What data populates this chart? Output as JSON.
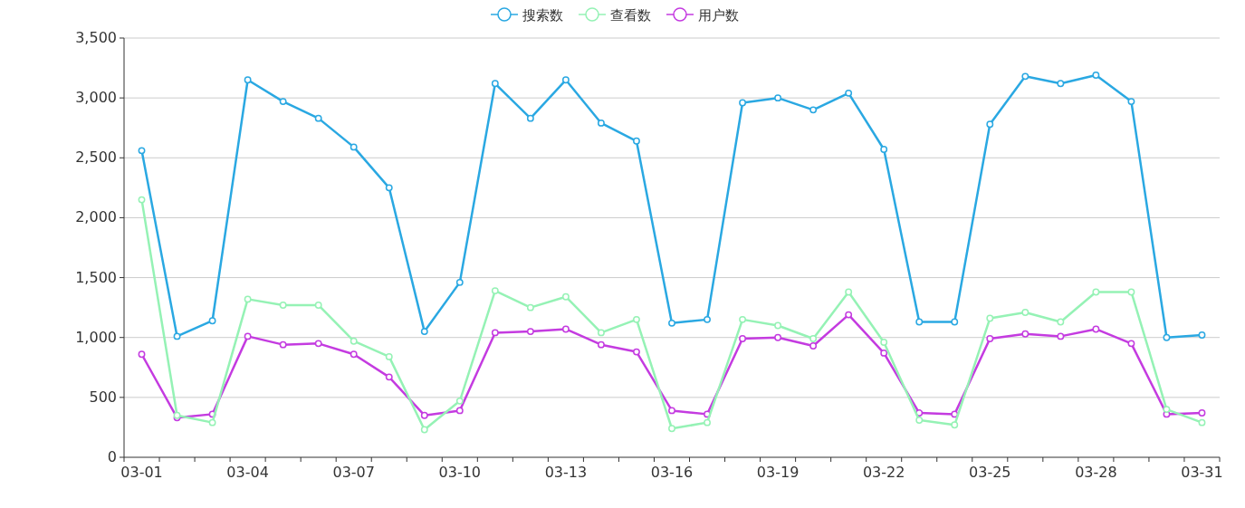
{
  "chart_data": {
    "type": "line",
    "categories": [
      "03-01",
      null,
      null,
      "03-04",
      null,
      null,
      "03-07",
      null,
      null,
      "03-10",
      null,
      null,
      "03-13",
      null,
      null,
      "03-16",
      null,
      null,
      "03-19",
      null,
      null,
      "03-22",
      null,
      null,
      "03-25",
      null,
      null,
      "03-28",
      null,
      null,
      "03-31"
    ],
    "series": [
      {
        "name": "搜索数",
        "color": "#2aa8e2",
        "values": [
          2560,
          1010,
          1140,
          3150,
          2970,
          2830,
          2590,
          2250,
          1050,
          1460,
          3120,
          2830,
          3150,
          2790,
          2640,
          1120,
          1150,
          2960,
          3000,
          2900,
          3040,
          2570,
          1130,
          1130,
          2780,
          3180,
          3120,
          3190,
          2970,
          1000,
          1020
        ]
      },
      {
        "name": "查看数",
        "color": "#95f2b5",
        "values": [
          2150,
          350,
          290,
          1320,
          1270,
          1270,
          970,
          840,
          230,
          470,
          1390,
          1250,
          1340,
          1040,
          1150,
          240,
          290,
          1150,
          1100,
          990,
          1380,
          960,
          310,
          270,
          1160,
          1210,
          1130,
          1380,
          1380,
          400,
          290
        ]
      },
      {
        "name": "用户数",
        "color": "#c43be0",
        "values": [
          860,
          330,
          360,
          1010,
          940,
          950,
          860,
          670,
          350,
          390,
          1040,
          1050,
          1070,
          940,
          880,
          390,
          360,
          990,
          1000,
          930,
          1190,
          870,
          370,
          360,
          990,
          1030,
          1010,
          1070,
          950,
          360,
          370
        ]
      }
    ],
    "ylim": [
      0,
      3500
    ],
    "yticks": [
      0,
      {
        "value": 500,
        "label": "500"
      },
      {
        "value": 1000,
        "label": "1,000"
      },
      {
        "value": 1500,
        "label": "1,500"
      },
      {
        "value": 2000,
        "label": "2,000"
      },
      {
        "value": 2500,
        "label": "2,500"
      },
      {
        "value": 3000,
        "label": "3,000"
      },
      {
        "value": 3500,
        "label": "3,500"
      }
    ],
    "grid": "y",
    "legend": "top",
    "marker": "circle",
    "line_style": "solid"
  }
}
